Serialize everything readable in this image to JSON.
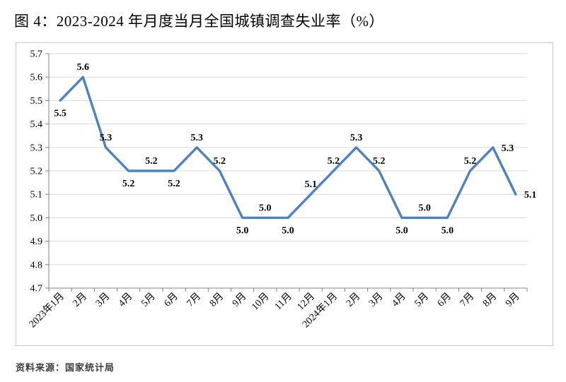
{
  "title": "图 4：2023-2024 年月度当月全国城镇调查失业率（%）",
  "source": "资料来源：国家统计局",
  "chart_data": {
    "type": "line",
    "title": "图 4：2023-2024 年月度当月全国城镇调查失业率（%）",
    "xlabel": "",
    "ylabel": "",
    "categories": [
      "2023年1月",
      "2月",
      "3月",
      "4月",
      "5月",
      "6月",
      "7月",
      "8月",
      "9月",
      "10月",
      "11月",
      "12月",
      "2024年1月",
      "2月",
      "3月",
      "4月",
      "5月",
      "6月",
      "7月",
      "8月",
      "9月"
    ],
    "values": [
      5.5,
      5.6,
      5.3,
      5.2,
      5.2,
      5.2,
      5.3,
      5.2,
      5.0,
      5.0,
      5.0,
      5.1,
      5.2,
      5.3,
      5.2,
      5.0,
      5.0,
      5.0,
      5.2,
      5.3,
      5.1
    ],
    "label_positions": [
      "below",
      "above",
      "above",
      "below",
      "above",
      "below",
      "above",
      "above",
      "below",
      "above",
      "below",
      "above",
      "above",
      "above",
      "above",
      "below",
      "above",
      "below",
      "above",
      "right",
      "right"
    ],
    "ylim": [
      4.7,
      5.7
    ],
    "ytick_step": 0.1,
    "grid": true,
    "legend_position": "none",
    "line_color": "#4f81bd",
    "grid_color": "#d9d9d9",
    "axis_color": "#7f7f7f",
    "text_color": "#000000"
  }
}
